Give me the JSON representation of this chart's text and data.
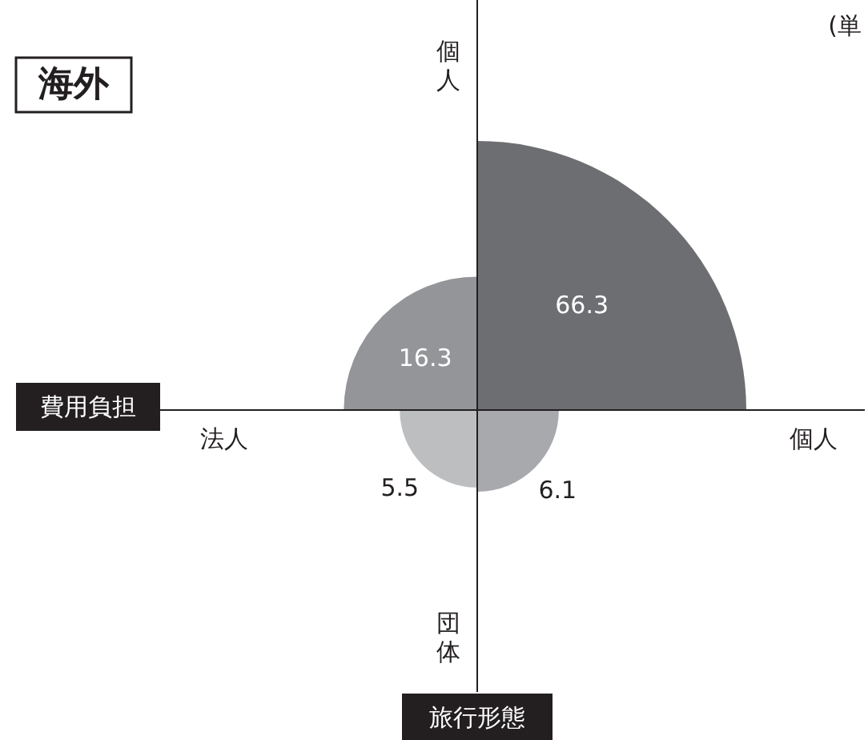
{
  "chart_data": {
    "type": "other",
    "title": "海外",
    "xlabel": "費用負担",
    "ylabel": "旅行形態",
    "categories": [
      null,
      null,
      null,
      null
    ],
    "values": [
      66.3,
      16.3,
      5.5,
      6.1
    ],
    "colors": [
      "#6d6e71",
      "#939598",
      "#bcbec0",
      "#a7a9ac"
    ],
    "data_labels": true,
    "annotations": [
      "(単",
      "個人",
      "法人",
      "団体",
      "個人"
    ]
  }
}
